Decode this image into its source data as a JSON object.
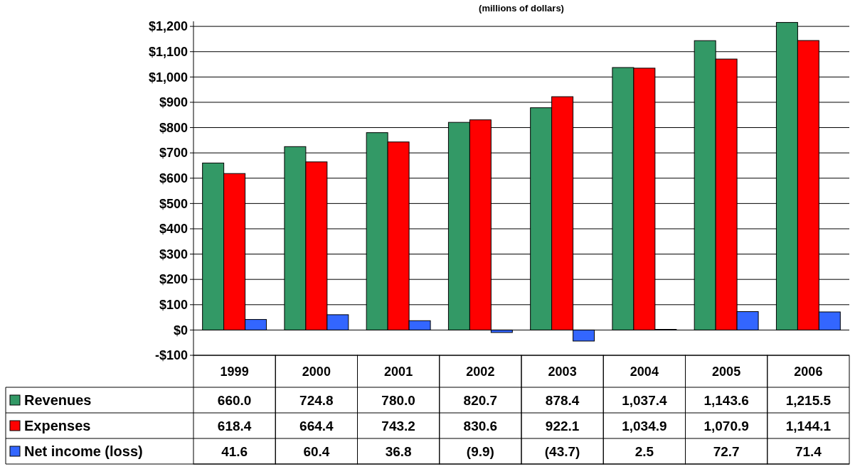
{
  "chart_data": {
    "type": "bar",
    "title": "(millions of dollars)",
    "categories": [
      "1999",
      "2000",
      "2001",
      "2002",
      "2003",
      "2004",
      "2005",
      "2006"
    ],
    "series": [
      {
        "name": "Revenues",
        "color": "#339966",
        "values": [
          660.0,
          724.8,
          780.0,
          820.7,
          878.4,
          1037.4,
          1143.6,
          1215.5
        ],
        "value_labels": [
          "660.0",
          "724.8",
          "780.0",
          "820.7",
          "878.4",
          "1,037.4",
          "1,143.6",
          "1,215.5"
        ]
      },
      {
        "name": "Expenses",
        "color": "#ff0000",
        "values": [
          618.4,
          664.4,
          743.2,
          830.6,
          922.1,
          1034.9,
          1070.9,
          1144.1
        ],
        "value_labels": [
          "618.4",
          "664.4",
          "743.2",
          "830.6",
          "922.1",
          "1,034.9",
          "1,070.9",
          "1,144.1"
        ]
      },
      {
        "name": "Net income (loss)",
        "color": "#3366ff",
        "values": [
          41.6,
          60.4,
          36.8,
          -9.9,
          -43.7,
          2.5,
          72.7,
          71.4
        ],
        "value_labels": [
          "41.6",
          "60.4",
          "36.8",
          "(9.9)",
          "(43.7)",
          "2.5",
          "72.7",
          "71.4"
        ]
      }
    ],
    "ylim": [
      -100,
      1220
    ],
    "yticks": [
      {
        "value": -100,
        "label": "-$100"
      },
      {
        "value": 0,
        "label": "$0"
      },
      {
        "value": 100,
        "label": "$100"
      },
      {
        "value": 200,
        "label": "$200"
      },
      {
        "value": 300,
        "label": "$300"
      },
      {
        "value": 400,
        "label": "$400"
      },
      {
        "value": 500,
        "label": "$500"
      },
      {
        "value": 600,
        "label": "$600"
      },
      {
        "value": 700,
        "label": "$700"
      },
      {
        "value": 800,
        "label": "$800"
      },
      {
        "value": 900,
        "label": "$900"
      },
      {
        "value": 1000,
        "label": "$1,000"
      },
      {
        "value": 1100,
        "label": "$1,100"
      },
      {
        "value": 1200,
        "label": "$1,200"
      }
    ],
    "grid": "y",
    "legend": "bottom"
  }
}
